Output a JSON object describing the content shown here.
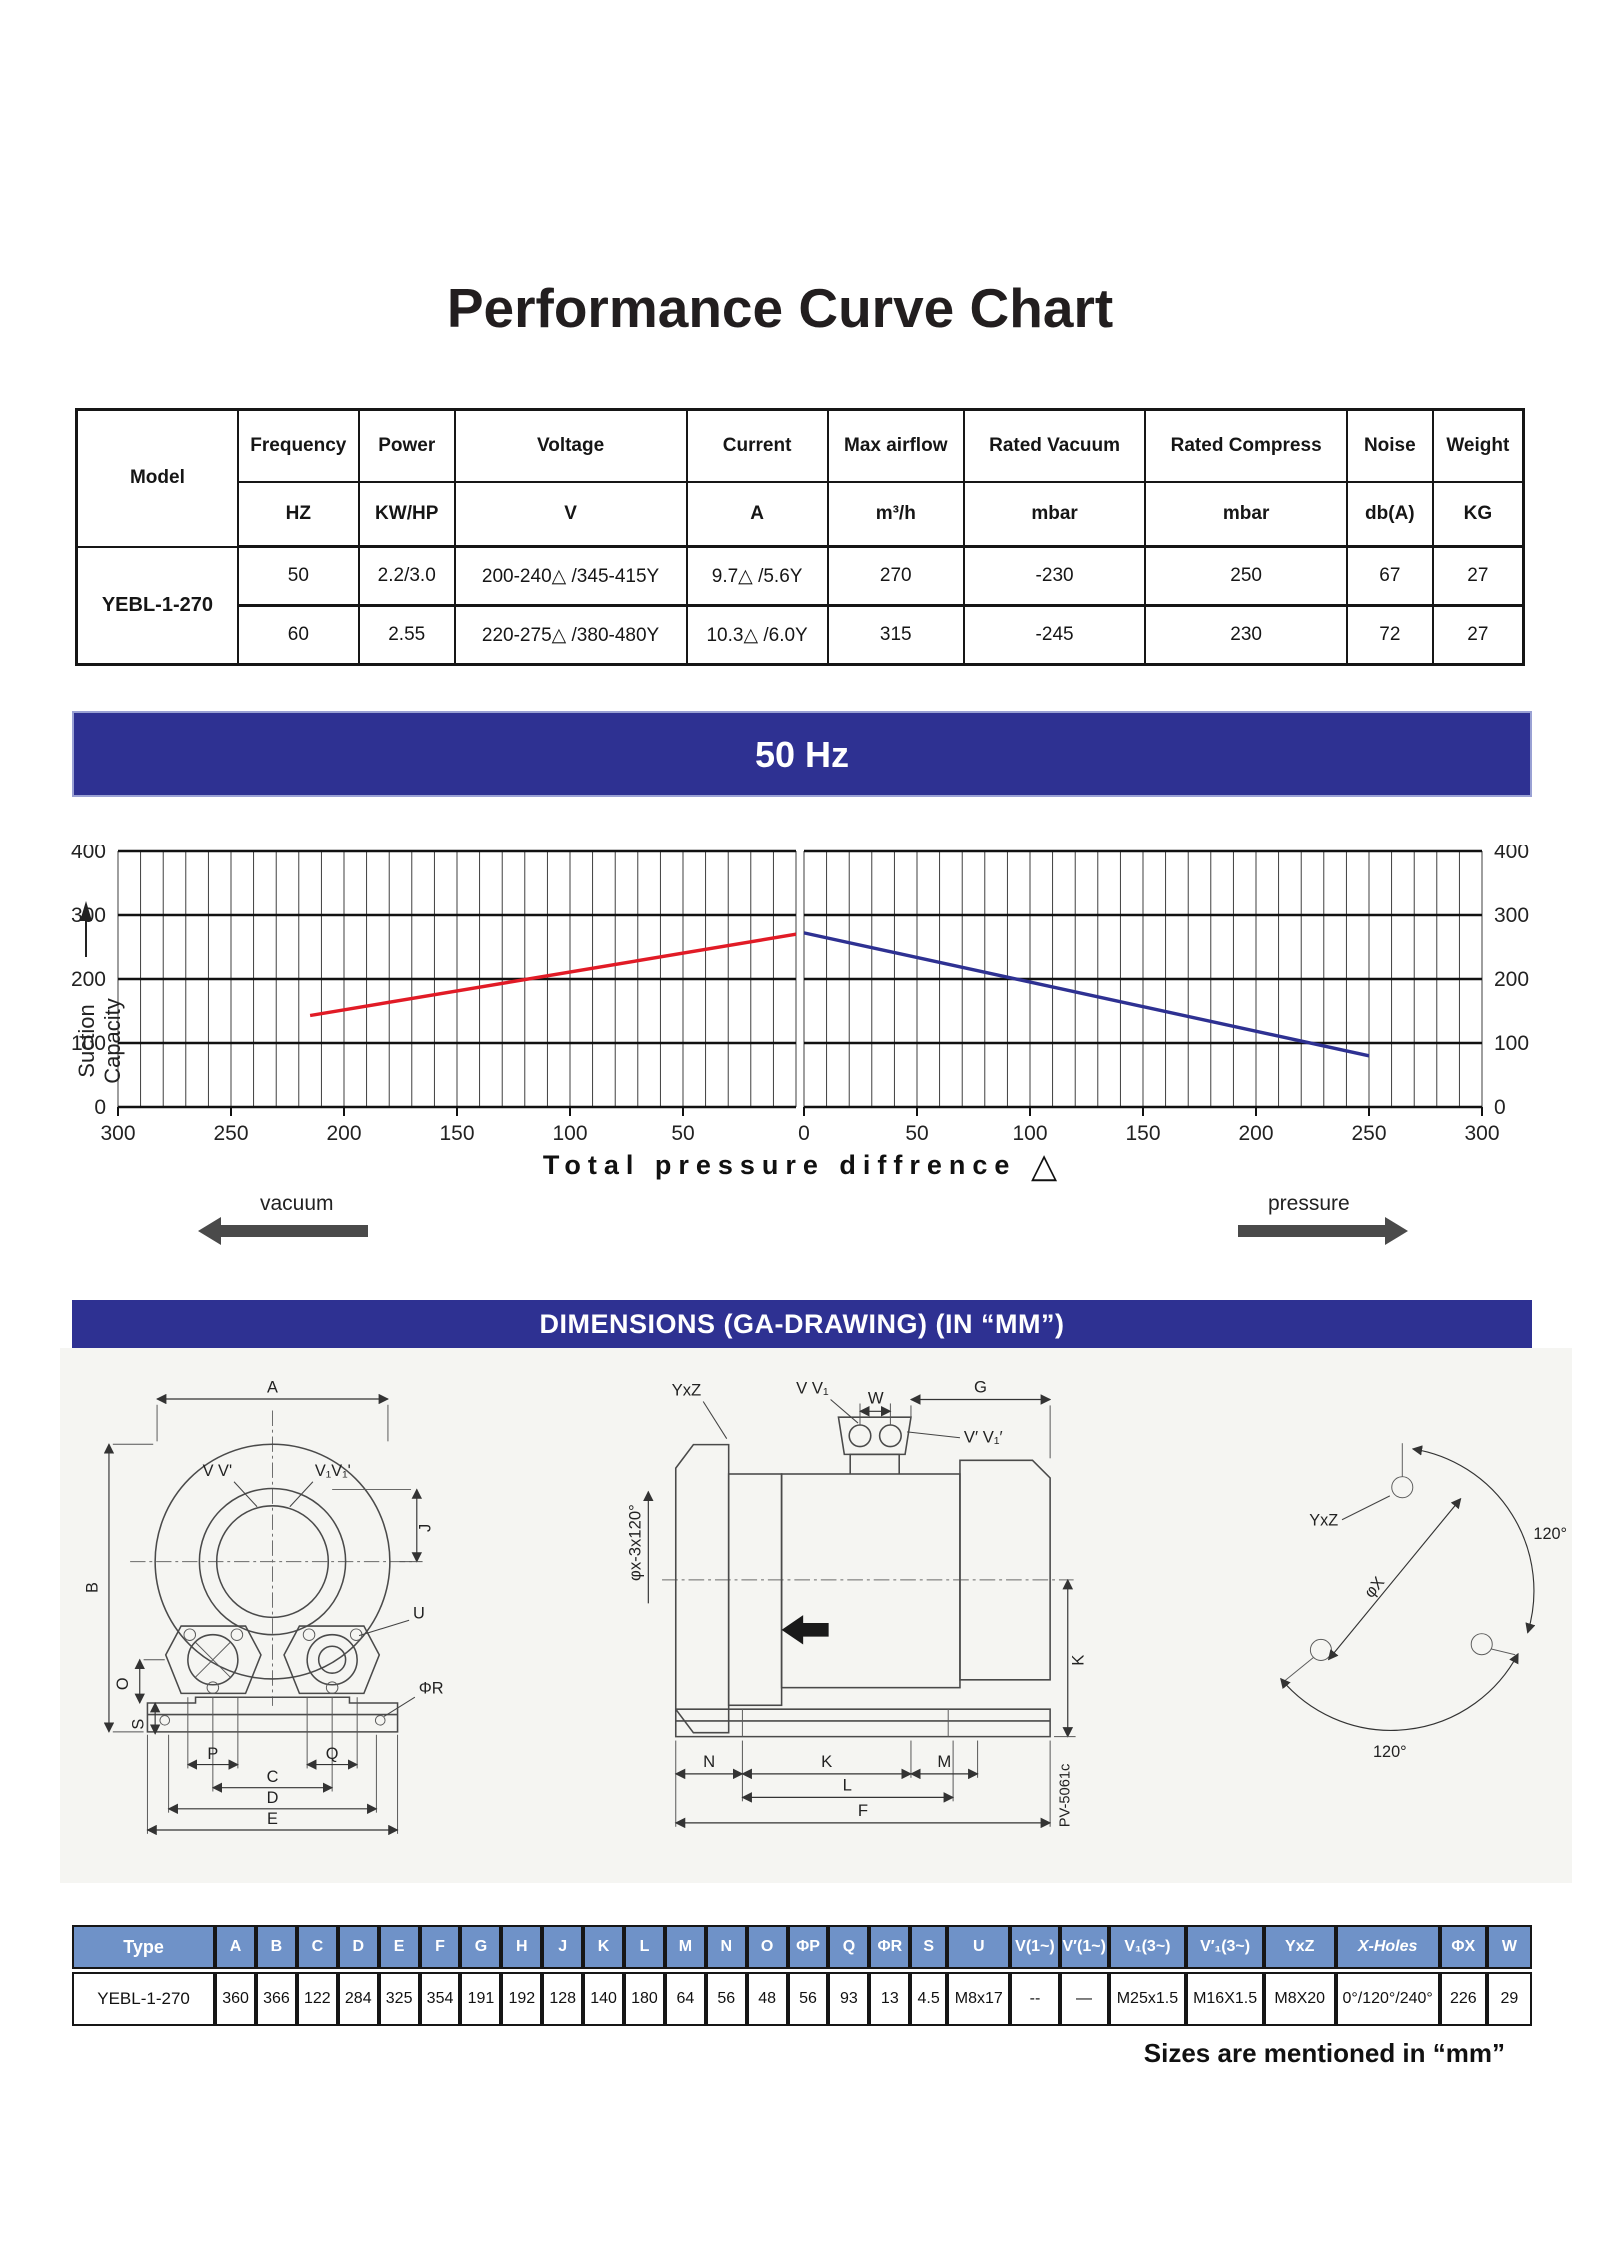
{
  "title": "Performance Curve Chart",
  "spec_table": {
    "col_headers": [
      "Model",
      "Frequency",
      "Power",
      "Voltage",
      "Current",
      "Max airflow",
      "Rated Vacuum",
      "Rated Compress",
      "Noise",
      "Weight"
    ],
    "unit_row": [
      "HZ",
      "KW/HP",
      "V",
      "A",
      "m³/h",
      "mbar",
      "mbar",
      "db(A)",
      "KG"
    ],
    "model": "YEBL-1-270",
    "row_50": [
      "50",
      "2.2/3.0",
      "200-240△ /345-415Y",
      "9.7△ /5.6Y",
      "270",
      "-230",
      "250",
      "67",
      "27"
    ],
    "row_60": [
      "60",
      "2.55",
      "220-275△ /380-480Y",
      "10.3△ /6.0Y",
      "315",
      "-245",
      "230",
      "72",
      "27"
    ]
  },
  "freq_banner": {
    "label": "50 Hz"
  },
  "chart_data": {
    "type": "line",
    "title": "50 Hz",
    "ylabel": "Suction Capacity",
    "xlabel": "Total pressure diffrence",
    "xlabel_symbol": "△",
    "left_axis_label": "vacuum",
    "right_axis_label": "pressure",
    "ylim": [
      0,
      400
    ],
    "y_ticks": [
      0,
      100,
      200,
      300,
      400
    ],
    "x_max": 300,
    "minor_step": 10,
    "x_ticks_left": [
      300,
      250,
      200,
      150,
      100,
      50
    ],
    "x_center_tick": 0,
    "x_ticks_right": [
      50,
      100,
      150,
      200,
      250,
      300
    ],
    "grid": "on",
    "series": [
      {
        "name": "50Hz vacuum side",
        "side": "left",
        "color": "#e11b26",
        "points": [
          [
            215,
            143
          ],
          [
            0,
            270
          ]
        ]
      },
      {
        "name": "50Hz pressure side",
        "side": "right",
        "color": "#2e3192",
        "points": [
          [
            0,
            272
          ],
          [
            250,
            80
          ]
        ]
      }
    ]
  },
  "dim_banner": {
    "label": "DIMENSIONS (GA-DRAWING) (IN “MM”)"
  },
  "drawings": {
    "front": {
      "a": "A",
      "b": "B",
      "j": "J",
      "vv": "V V'",
      "v1v1": "V₁V₁'",
      "u": "U",
      "phi_r": "ΦR",
      "o": "O",
      "s": "S",
      "p": "P",
      "q": "Q",
      "c": "C",
      "d": "D",
      "e": "E"
    },
    "side": {
      "yxz": "YxZ",
      "vv1": "V V₁",
      "w": "W",
      "g": "G",
      "vp": "V′ V₁′",
      "phi_x": "φx-3x120°",
      "k_side": "K",
      "n": "N",
      "k": "K",
      "m": "M",
      "l": "L",
      "f": "F",
      "code": "PV-5061c"
    },
    "bolt": {
      "yxz": "YxZ",
      "phi_x": "φX",
      "angle1": "120°",
      "angle2": "120°"
    }
  },
  "dims_table": {
    "headers": [
      "Type",
      "A",
      "B",
      "C",
      "D",
      "E",
      "F",
      "G",
      "H",
      "J",
      "K",
      "L",
      "M",
      "N",
      "O",
      "ΦP",
      "Q",
      "ΦR",
      "S",
      "U",
      "V(1~)",
      "V′(1~)",
      "V₁(3~)",
      "V′₁(3~)",
      "YxZ",
      "X-Holes",
      "ΦX",
      "W"
    ],
    "row": [
      "YEBL-1-270",
      "360",
      "366",
      "122",
      "284",
      "325",
      "354",
      "191",
      "192",
      "128",
      "140",
      "180",
      "64",
      "56",
      "48",
      "56",
      "93",
      "13",
      "4.5",
      "M8x17",
      "--",
      "—",
      "M25x1.5",
      "M16X1.5",
      "M8X20",
      "0°/120°/240°",
      "226",
      "29"
    ]
  },
  "footer": {
    "note": "Sizes are mentioned in “mm”"
  }
}
